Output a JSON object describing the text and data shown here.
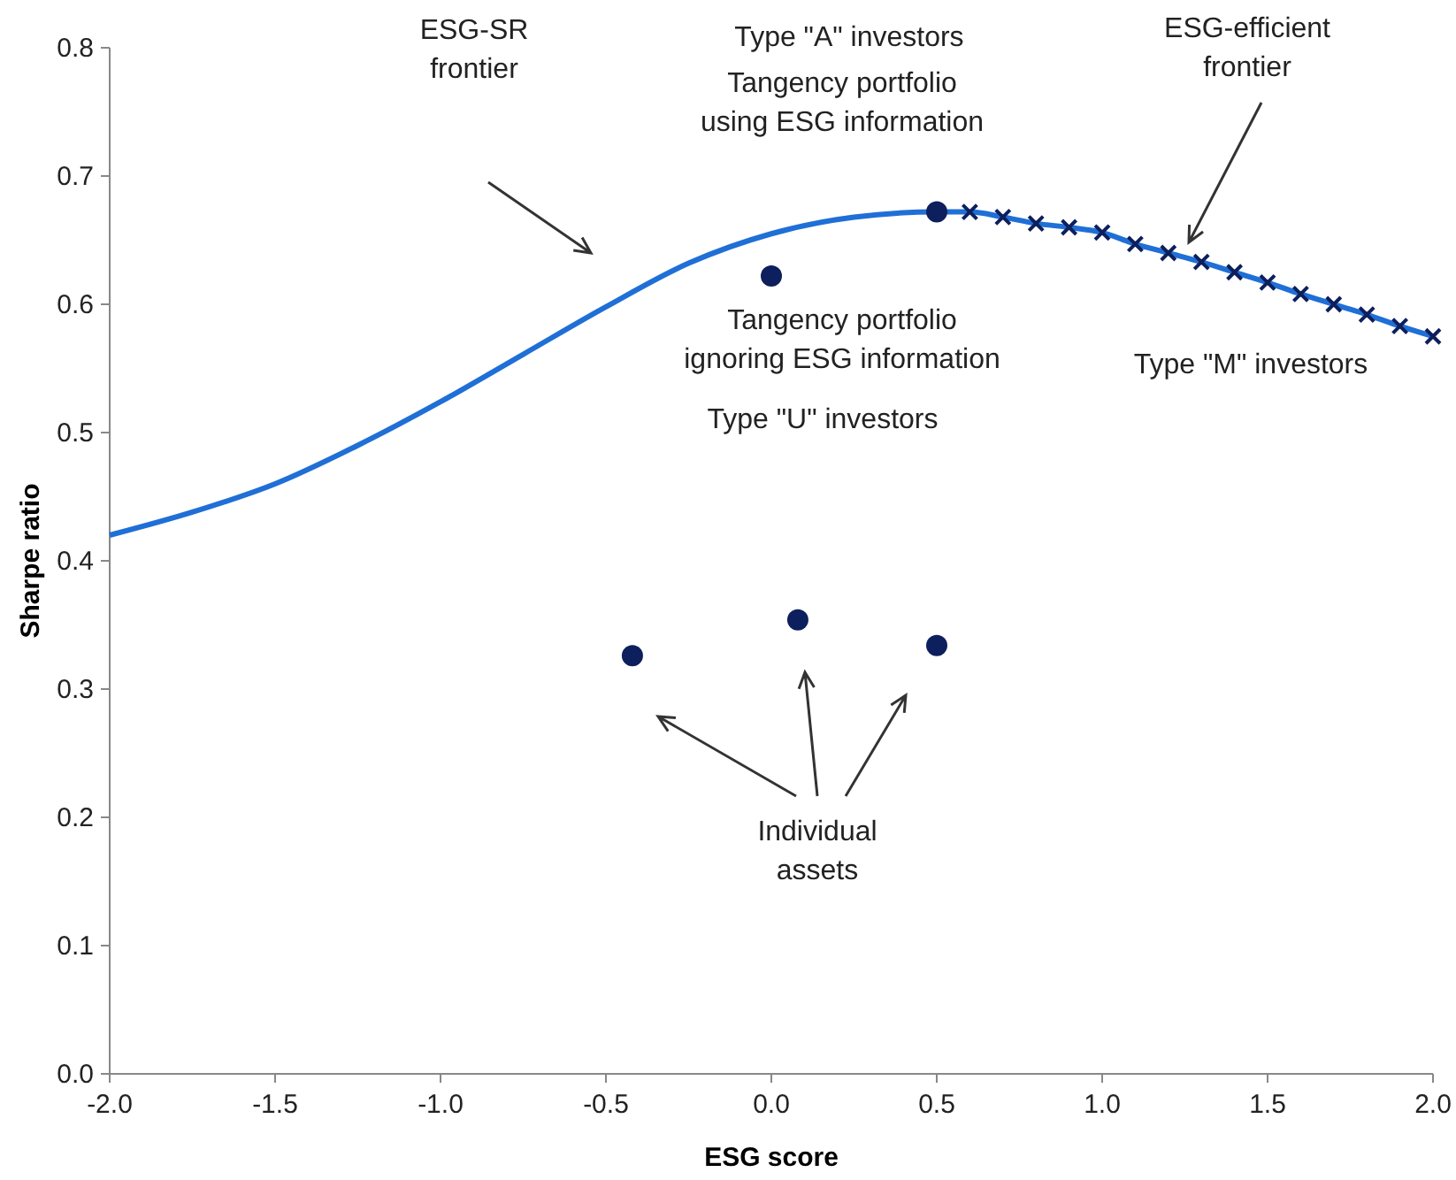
{
  "chart_data": {
    "type": "line",
    "xlabel": "ESG score",
    "ylabel": "Sharpe ratio",
    "xlim": [
      -2,
      2
    ],
    "xticks": [
      {
        "value": -2,
        "label": "-2.0"
      },
      {
        "value": -1.5,
        "label": "-1.5"
      },
      {
        "value": -1,
        "label": "-1.0"
      },
      {
        "value": -0.5,
        "label": "-0.5"
      },
      {
        "value": 0,
        "label": "0.0"
      },
      {
        "value": 0.5,
        "label": "0.5"
      },
      {
        "value": 1,
        "label": "1.0"
      },
      {
        "value": 1.5,
        "label": "1.5"
      },
      {
        "value": 2,
        "label": "2.0"
      }
    ],
    "ylim": [
      0,
      0.8
    ],
    "yticks": [
      {
        "value": 0,
        "label": "0.0"
      },
      {
        "value": 0.1,
        "label": "0.1"
      },
      {
        "value": 0.2,
        "label": "0.2"
      },
      {
        "value": 0.3,
        "label": "0.3"
      },
      {
        "value": 0.4,
        "label": "0.4"
      },
      {
        "value": 0.5,
        "label": "0.5"
      },
      {
        "value": 0.6,
        "label": "0.6"
      },
      {
        "value": 0.7,
        "label": "0.7"
      },
      {
        "value": 0.8,
        "label": "0.8"
      }
    ],
    "grid": false,
    "series": [
      {
        "color": "#1f6fd6",
        "marker": "none",
        "x": [
          -2,
          -1.75,
          -1.5,
          -1.25,
          -1,
          -0.75,
          -0.5,
          -0.25,
          0,
          0.25,
          0.5,
          0.6,
          0.7,
          0.8,
          0.9,
          1,
          1.1,
          1.2,
          1.3,
          1.4,
          1.5,
          1.6,
          1.7,
          1.8,
          1.9,
          2
        ],
        "values": [
          0.42,
          0.438,
          0.46,
          0.49,
          0.524,
          0.561,
          0.598,
          0.632,
          0.655,
          0.668,
          0.672,
          0.672,
          0.668,
          0.663,
          0.66,
          0.656,
          0.647,
          0.64,
          0.633,
          0.625,
          0.617,
          0.608,
          0.6,
          0.592,
          0.583,
          0.575
        ]
      },
      {
        "type": "scatter",
        "color": "#0d1f5c",
        "marker": "cross",
        "x": [
          0.6,
          0.7,
          0.8,
          0.9,
          1,
          1.1,
          1.2,
          1.3,
          1.4,
          1.5,
          1.6,
          1.7,
          1.8,
          1.9,
          2
        ],
        "values": [
          0.672,
          0.668,
          0.663,
          0.66,
          0.656,
          0.647,
          0.64,
          0.633,
          0.625,
          0.617,
          0.608,
          0.6,
          0.592,
          0.583,
          0.575
        ]
      },
      {
        "type": "scatter",
        "color": "#0d1f5c",
        "marker": "circle",
        "x": [
          0.5
        ],
        "values": [
          0.672
        ]
      },
      {
        "type": "scatter",
        "color": "#0d1f5c",
        "marker": "circle",
        "x": [
          0
        ],
        "values": [
          0.622
        ]
      },
      {
        "type": "scatter",
        "color": "#0d1f5c",
        "marker": "circle",
        "x": [
          -0.42,
          0.08,
          0.5
        ],
        "values": [
          0.326,
          0.354,
          0.334
        ]
      }
    ],
    "annotations": [
      "ESG-SR frontier",
      "Type \"A\" investors",
      "Tangency portfolio using ESG information",
      "ESG-efficient frontier",
      "Tangency portfolio ignoring ESG information",
      "Type \"U\" investors",
      "Type \"M\" investors",
      "Individual assets"
    ]
  }
}
